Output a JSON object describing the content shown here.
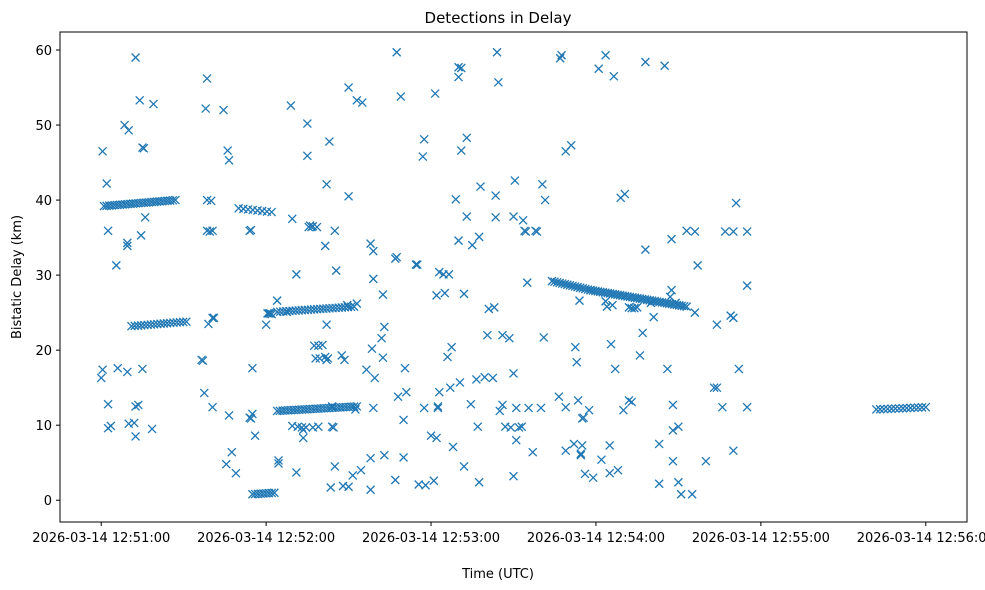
{
  "chart_data": {
    "type": "scatter",
    "title": "Detections in Delay",
    "xlabel": "Time (UTC)",
    "ylabel": "Bistatic Delay (km)",
    "marker": "x",
    "color": "#1f77b4",
    "grid": false,
    "xlim_seconds": [
      -15,
      315
    ],
    "ylim": [
      -2.9,
      62.4
    ],
    "x_unit": "seconds after 2026-03-14 12:51:00 UTC",
    "x_ticks": [
      {
        "value": 0,
        "label": "2026-03-14 12:51:00"
      },
      {
        "value": 60,
        "label": "2026-03-14 12:52:00"
      },
      {
        "value": 120,
        "label": "2026-03-14 12:53:00"
      },
      {
        "value": 180,
        "label": "2026-03-14 12:54:00"
      },
      {
        "value": 240,
        "label": "2026-03-14 12:55:00"
      },
      {
        "value": 300,
        "label": "2026-03-14 12:56:00"
      }
    ],
    "y_ticks": [
      0,
      10,
      20,
      30,
      40,
      50,
      60
    ],
    "tracks": [
      {
        "name": "track-a",
        "t_start": 1,
        "t_end": 27,
        "y_start": 39.2,
        "y_end": 40.0,
        "count": 28
      },
      {
        "name": "track-b",
        "t_start": 11,
        "t_end": 31,
        "y_start": 23.2,
        "y_end": 23.8,
        "count": 18
      },
      {
        "name": "track-c",
        "t_start": 50,
        "t_end": 62,
        "y_start": 38.9,
        "y_end": 38.4,
        "count": 8
      },
      {
        "name": "track-d",
        "t_start": 64,
        "t_end": 92,
        "y_start": 25.1,
        "y_end": 25.8,
        "count": 26
      },
      {
        "name": "track-e",
        "t_start": 64,
        "t_end": 93,
        "y_start": 11.9,
        "y_end": 12.5,
        "count": 30
      },
      {
        "name": "track-f",
        "t_start": 164,
        "t_end": 178,
        "y_start": 29.2,
        "y_end": 28.0,
        "count": 16
      },
      {
        "name": "track-g",
        "t_start": 178,
        "t_end": 213,
        "y_start": 28.0,
        "y_end": 25.8,
        "count": 40
      },
      {
        "name": "track-h",
        "t_start": 55,
        "t_end": 63,
        "y_start": 0.8,
        "y_end": 1.0,
        "count": 9
      },
      {
        "name": "track-i",
        "t_start": 282,
        "t_end": 300,
        "y_start": 12.1,
        "y_end": 12.4,
        "count": 14
      }
    ],
    "points": [
      [
        0,
        16.3
      ],
      [
        0.5,
        17.4
      ],
      [
        0.5,
        46.5
      ],
      [
        2,
        42.2
      ],
      [
        2.5,
        35.9
      ],
      [
        2.5,
        12.8
      ],
      [
        2.5,
        9.6
      ],
      [
        3.5,
        9.9
      ],
      [
        5.5,
        31.3
      ],
      [
        6,
        17.6
      ],
      [
        8.5,
        50.0
      ],
      [
        9.5,
        34.3
      ],
      [
        9.5,
        33.9
      ],
      [
        9.5,
        17.1
      ],
      [
        10,
        49.3
      ],
      [
        10,
        10.2
      ],
      [
        12,
        10.3
      ],
      [
        12.5,
        59.0
      ],
      [
        12.5,
        8.5
      ],
      [
        12.5,
        12.5
      ],
      [
        13.5,
        12.7
      ],
      [
        14,
        53.3
      ],
      [
        14.5,
        35.3
      ],
      [
        15,
        47.0
      ],
      [
        15,
        17.5
      ],
      [
        15.5,
        46.9
      ],
      [
        16,
        37.7
      ],
      [
        18.5,
        9.5
      ],
      [
        19,
        52.8
      ],
      [
        36.5,
        18.7
      ],
      [
        37,
        18.6
      ],
      [
        37.5,
        14.3
      ],
      [
        38,
        52.2
      ],
      [
        38.5,
        56.2
      ],
      [
        38.5,
        40.0
      ],
      [
        38.5,
        35.9
      ],
      [
        39,
        23.5
      ],
      [
        39.5,
        35.8
      ],
      [
        40,
        39.9
      ],
      [
        40.5,
        12.4
      ],
      [
        40.5,
        35.9
      ],
      [
        40.5,
        24.3
      ],
      [
        41,
        24.3
      ],
      [
        44.5,
        52.0
      ],
      [
        45.5,
        4.8
      ],
      [
        46,
        46.6
      ],
      [
        46.5,
        11.3
      ],
      [
        46.5,
        45.3
      ],
      [
        47.5,
        6.4
      ],
      [
        49,
        3.6
      ],
      [
        54,
        35.9
      ],
      [
        54,
        11.0
      ],
      [
        54.5,
        36.0
      ],
      [
        54.5,
        10.9
      ],
      [
        55,
        17.6
      ],
      [
        55,
        11.5
      ],
      [
        56,
        8.6
      ],
      [
        60,
        23.4
      ],
      [
        60.5,
        24.9
      ],
      [
        61,
        24.9
      ],
      [
        61.5,
        24.9
      ],
      [
        62,
        24.8
      ],
      [
        64,
        26.6
      ],
      [
        64.5,
        5.3
      ],
      [
        64.5,
        4.9
      ],
      [
        67.5,
        25.1
      ],
      [
        69,
        52.6
      ],
      [
        69.5,
        37.5
      ],
      [
        69.5,
        9.9
      ],
      [
        71,
        30.1
      ],
      [
        71,
        3.7
      ],
      [
        71.5,
        9.8
      ],
      [
        73,
        9.7
      ],
      [
        73.5,
        9.4
      ],
      [
        73.5,
        8.3
      ],
      [
        74.5,
        9.7
      ],
      [
        75,
        45.9
      ],
      [
        75,
        50.2
      ],
      [
        75.5,
        36.4
      ],
      [
        76,
        36.6
      ],
      [
        76.5,
        36.4
      ],
      [
        77,
        36.5
      ],
      [
        77,
        9.7
      ],
      [
        77.5,
        20.6
      ],
      [
        78,
        18.9
      ],
      [
        78.5,
        36.4
      ],
      [
        79,
        20.6
      ],
      [
        79,
        9.8
      ],
      [
        79.5,
        18.9
      ],
      [
        80.5,
        20.7
      ],
      [
        81.5,
        33.9
      ],
      [
        81.5,
        19.1
      ],
      [
        82,
        18.7
      ],
      [
        82,
        23.4
      ],
      [
        82,
        42.1
      ],
      [
        82.5,
        18.9
      ],
      [
        83,
        47.8
      ],
      [
        83.5,
        1.7
      ],
      [
        84,
        12.5
      ],
      [
        84,
        9.8
      ],
      [
        84.5,
        9.7
      ],
      [
        85,
        35.9
      ],
      [
        85,
        4.5
      ],
      [
        85.5,
        30.6
      ],
      [
        87.5,
        19.3
      ],
      [
        88,
        1.9
      ],
      [
        88.5,
        18.7
      ],
      [
        89.5,
        26.0
      ],
      [
        90,
        55.0
      ],
      [
        90,
        40.5
      ],
      [
        90,
        1.8
      ],
      [
        91.5,
        3.3
      ],
      [
        92.5,
        12.1
      ],
      [
        93,
        53.3
      ],
      [
        93,
        26.2
      ],
      [
        94.5,
        4.0
      ],
      [
        95,
        53.0
      ],
      [
        96.5,
        17.4
      ],
      [
        98,
        1.4
      ],
      [
        98,
        34.2
      ],
      [
        98,
        5.6
      ],
      [
        98.5,
        20.2
      ],
      [
        99,
        29.5
      ],
      [
        99,
        12.3
      ],
      [
        99,
        33.2
      ],
      [
        99.5,
        16.3
      ],
      [
        102,
        21.6
      ],
      [
        102.5,
        27.4
      ],
      [
        102.5,
        19.0
      ],
      [
        103,
        23.1
      ],
      [
        103,
        6.0
      ],
      [
        107,
        2.7
      ],
      [
        107,
        32.2
      ],
      [
        107.5,
        59.7
      ],
      [
        107.5,
        32.4
      ],
      [
        108,
        13.8
      ],
      [
        109,
        53.8
      ],
      [
        110,
        10.7
      ],
      [
        110,
        5.7
      ],
      [
        110.5,
        17.6
      ],
      [
        111,
        14.4
      ],
      [
        114.5,
        31.4
      ],
      [
        115,
        31.4
      ],
      [
        115.5,
        2.1
      ],
      [
        117,
        45.8
      ],
      [
        117.5,
        48.1
      ],
      [
        117.5,
        12.3
      ],
      [
        118,
        2.0
      ],
      [
        120,
        8.6
      ],
      [
        121,
        2.6
      ],
      [
        121.5,
        54.2
      ],
      [
        122,
        27.3
      ],
      [
        122.5,
        12.3
      ],
      [
        122,
        8.3
      ],
      [
        122.5,
        12.5
      ],
      [
        123,
        14.4
      ],
      [
        123,
        30.4
      ],
      [
        124.5,
        30.1
      ],
      [
        125,
        27.6
      ],
      [
        126,
        19.1
      ],
      [
        126.5,
        30.1
      ],
      [
        127,
        15.0
      ],
      [
        127.5,
        20.4
      ],
      [
        128,
        7.1
      ],
      [
        129,
        40.1
      ],
      [
        130,
        34.6
      ],
      [
        130,
        57.7
      ],
      [
        130,
        56.4
      ],
      [
        130.5,
        15.7
      ],
      [
        131,
        57.6
      ],
      [
        131,
        46.6
      ],
      [
        132,
        27.5
      ],
      [
        132,
        4.5
      ],
      [
        133,
        37.8
      ],
      [
        133,
        48.3
      ],
      [
        134.5,
        12.8
      ],
      [
        135,
        34.0
      ],
      [
        136.5,
        16.1
      ],
      [
        137,
        9.8
      ],
      [
        137.5,
        35.1
      ],
      [
        137.5,
        2.4
      ],
      [
        138,
        41.8
      ],
      [
        139.5,
        16.4
      ],
      [
        140.5,
        22.0
      ],
      [
        141,
        25.5
      ],
      [
        142.5,
        16.3
      ],
      [
        143.5,
        40.6
      ],
      [
        143,
        25.7
      ],
      [
        143.5,
        37.7
      ],
      [
        144,
        59.7
      ],
      [
        144.5,
        55.7
      ],
      [
        145,
        11.9
      ],
      [
        146,
        22.0
      ],
      [
        146,
        12.7
      ],
      [
        147,
        9.8
      ],
      [
        148.5,
        21.6
      ],
      [
        149,
        9.7
      ],
      [
        150,
        37.8
      ],
      [
        150,
        16.9
      ],
      [
        150,
        3.2
      ],
      [
        150.5,
        42.6
      ],
      [
        151,
        8.0
      ],
      [
        151,
        12.3
      ],
      [
        152,
        9.7
      ],
      [
        153,
        9.8
      ],
      [
        153.5,
        37.3
      ],
      [
        154,
        35.9
      ],
      [
        154.5,
        35.8
      ],
      [
        155,
        29.0
      ],
      [
        155.5,
        12.3
      ],
      [
        157,
        6.4
      ],
      [
        158,
        35.9
      ],
      [
        158.5,
        35.8
      ],
      [
        160,
        12.3
      ],
      [
        160.5,
        42.1
      ],
      [
        161,
        21.7
      ],
      [
        161.5,
        40.0
      ],
      [
        166.5,
        13.8
      ],
      [
        167,
        58.9
      ],
      [
        167.5,
        59.3
      ],
      [
        169,
        6.6
      ],
      [
        169,
        46.5
      ],
      [
        169,
        12.4
      ],
      [
        171,
        47.3
      ],
      [
        172,
        7.5
      ],
      [
        172.5,
        20.4
      ],
      [
        173,
        18.4
      ],
      [
        173.5,
        13.3
      ],
      [
        174.5,
        6.2
      ],
      [
        174,
        26.6
      ],
      [
        174.5,
        6.0
      ],
      [
        175,
        7.3
      ],
      [
        175,
        10.9
      ],
      [
        175.5,
        11.0
      ],
      [
        176,
        3.5
      ],
      [
        177.5,
        12.0
      ],
      [
        179,
        3.0
      ],
      [
        181,
        57.5
      ],
      [
        182,
        5.4
      ],
      [
        183.5,
        59.3
      ],
      [
        183.5,
        26.5
      ],
      [
        184,
        25.8
      ],
      [
        185,
        7.3
      ],
      [
        185,
        3.6
      ],
      [
        185.5,
        20.8
      ],
      [
        186,
        26.0
      ],
      [
        186.5,
        56.5
      ],
      [
        187,
        17.5
      ],
      [
        188,
        4.0
      ],
      [
        189,
        40.3
      ],
      [
        190,
        12.0
      ],
      [
        190.5,
        40.8
      ],
      [
        192,
        13.3
      ],
      [
        192,
        25.7
      ],
      [
        193,
        13.1
      ],
      [
        193,
        25.6
      ],
      [
        194,
        25.6
      ],
      [
        195,
        25.7
      ],
      [
        196,
        19.3
      ],
      [
        197,
        22.3
      ],
      [
        198,
        58.4
      ],
      [
        198,
        33.4
      ],
      [
        200,
        26.3
      ],
      [
        201,
        24.4
      ],
      [
        203,
        7.5
      ],
      [
        203,
        2.2
      ],
      [
        205,
        57.9
      ],
      [
        206,
        17.5
      ],
      [
        207,
        27.1
      ],
      [
        207.5,
        34.8
      ],
      [
        207.5,
        28.0
      ],
      [
        208,
        12.7
      ],
      [
        208,
        9.3
      ],
      [
        208,
        5.2
      ],
      [
        209,
        26.3
      ],
      [
        210,
        2.4
      ],
      [
        210,
        9.8
      ],
      [
        211,
        0.8
      ],
      [
        213,
        35.9
      ],
      [
        215,
        0.8
      ],
      [
        216,
        35.8
      ],
      [
        216,
        25.0
      ],
      [
        217,
        31.3
      ],
      [
        220,
        5.2
      ],
      [
        223,
        15.0
      ],
      [
        224,
        15.0
      ],
      [
        224,
        23.4
      ],
      [
        226,
        12.4
      ],
      [
        227,
        35.8
      ],
      [
        229,
        24.6
      ],
      [
        230,
        35.8
      ],
      [
        230,
        24.3
      ],
      [
        230,
        6.6
      ],
      [
        231,
        39.6
      ],
      [
        232,
        17.5
      ],
      [
        235,
        35.8
      ],
      [
        235,
        28.6
      ],
      [
        235,
        12.4
      ]
    ]
  }
}
